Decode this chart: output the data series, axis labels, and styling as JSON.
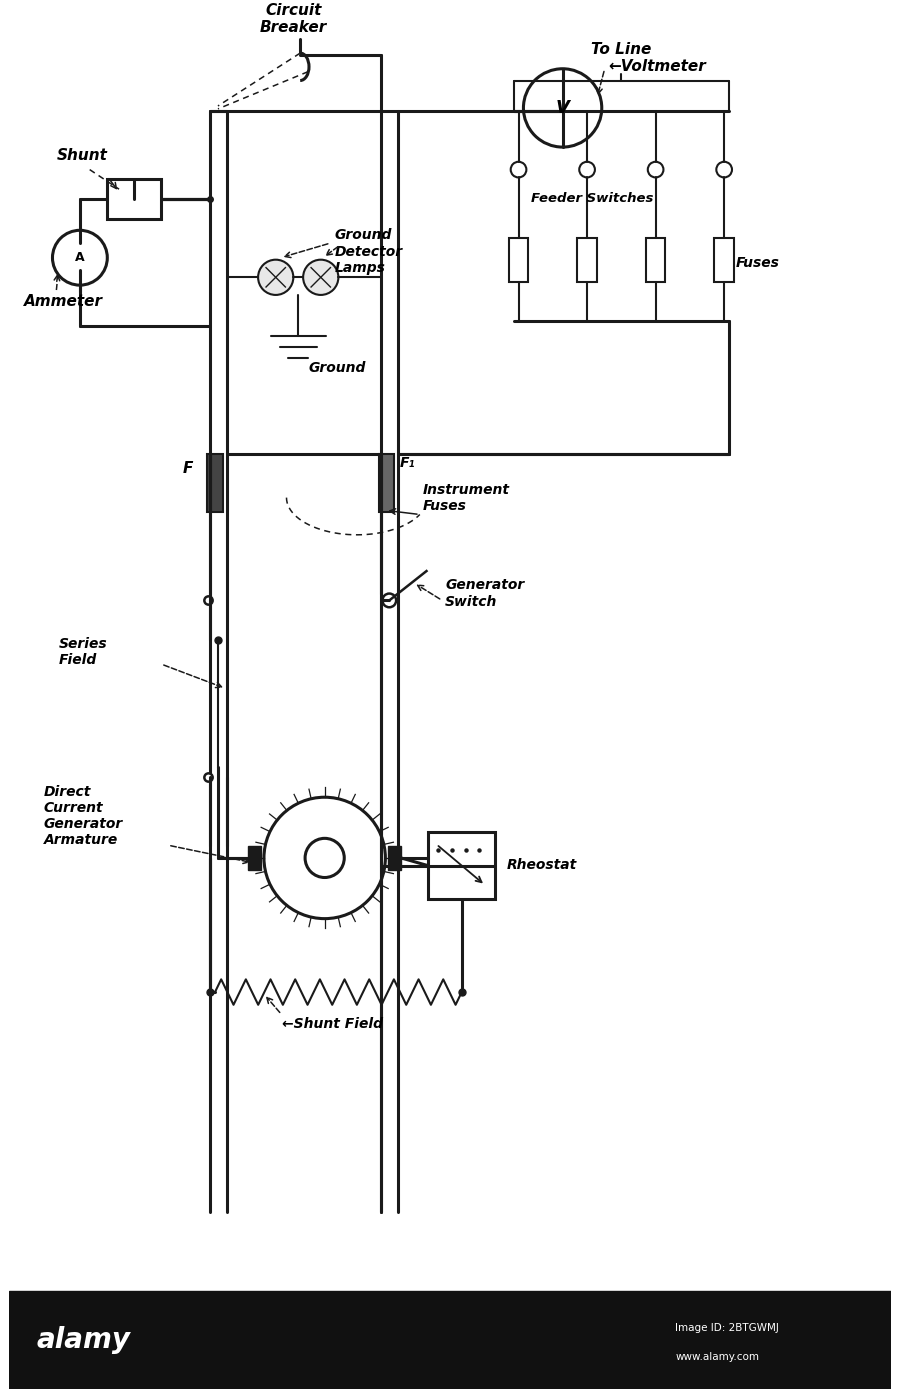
{
  "bg_color": "#ffffff",
  "line_color": "#1a1a1a",
  "fig_width": 9.0,
  "fig_height": 13.9,
  "labels": {
    "circuit_breaker": "Circuit\nBreaker",
    "voltmeter": "←Voltmeter",
    "shunt": "Shunt",
    "ammeter": "Ammeter",
    "ground_detector_lamps": "Ground\nDetector\nLamps",
    "ground": "Ground",
    "to_line": "To Line",
    "feeder_switches": "Feeder Switches",
    "fuses": "Fuses",
    "F": "F",
    "F1": "F₁",
    "instrument_fuses": "Instrument\nFuses",
    "generator_switch": "Generator\nSwitch",
    "series_field": "Series\nField",
    "direct_current": "Direct\nCurrent\nGenerator\nArmature",
    "rheostat": "Rheostat",
    "shunt_field": "←Shunt Field"
  },
  "alamy_bar_color": "#111111",
  "alamy_text": "alamy",
  "alamy_id": "Image ID: 2BTGWMJ",
  "alamy_url": "www.alamy.com"
}
